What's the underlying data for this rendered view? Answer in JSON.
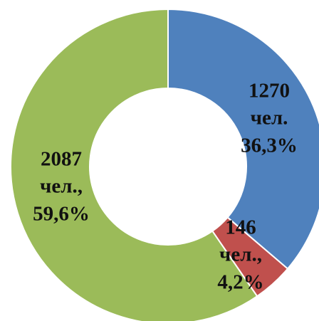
{
  "chart_data": {
    "type": "donut",
    "categories": [
      null,
      null,
      null
    ],
    "values": [
      1270,
      146,
      2087
    ],
    "units": [
      "чел.",
      "чел.,",
      "чел.,"
    ],
    "percents": [
      36.3,
      4.2,
      59.6
    ],
    "percent_labels": [
      "36,3%",
      "4,2%",
      "59,6%"
    ],
    "colors": [
      "#4f81bd",
      "#c0504d",
      "#9bbb59"
    ]
  }
}
